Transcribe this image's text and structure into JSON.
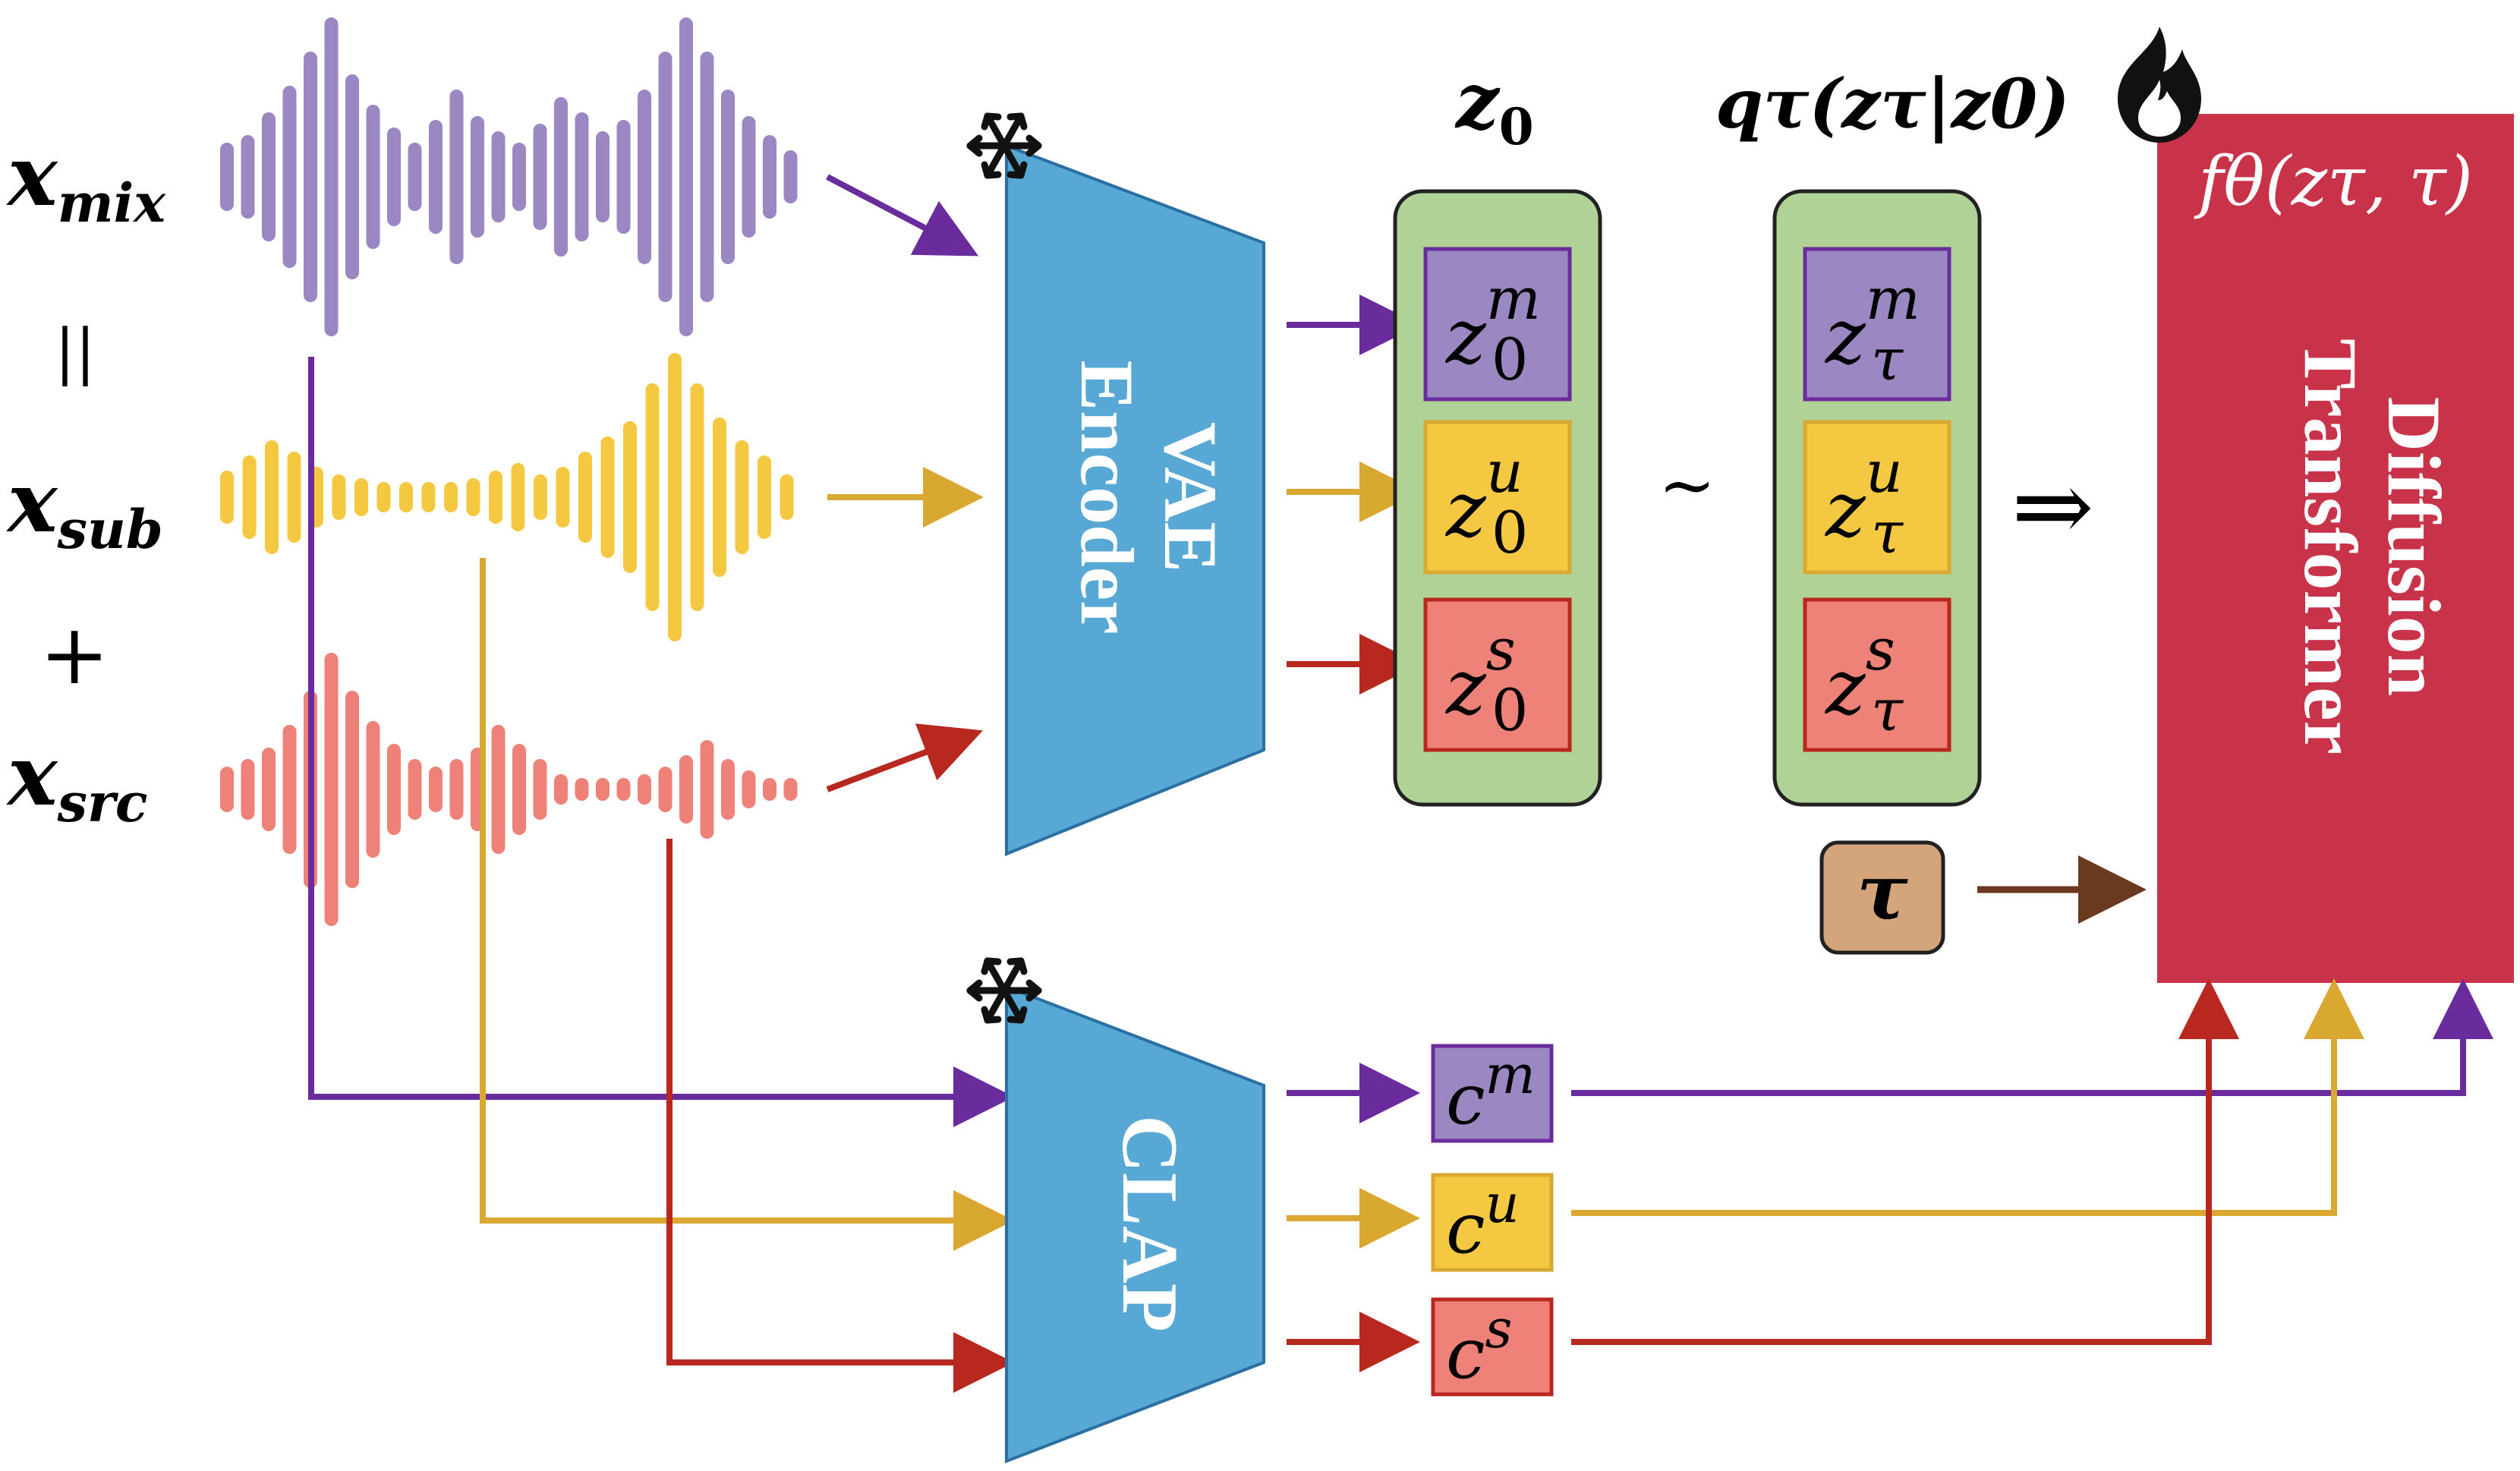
{
  "inputs": {
    "mix": {
      "main": "x",
      "sub": "mix"
    },
    "equals": "||",
    "sub_track": {
      "main": "x",
      "sub": "sub"
    },
    "plus": "+",
    "src": {
      "main": "x",
      "sub": "src"
    }
  },
  "encoders": {
    "vae_line1": "VAE",
    "vae_line2": "Encoder",
    "clap": "CLAP",
    "frozen_icon": "snowflake-icon"
  },
  "latents": {
    "z0_title_main": "z",
    "z0_title_sub": "0",
    "q_title": "qτ(zτ|z0)",
    "tilde": "~",
    "implies": "⇒",
    "z0_items": [
      {
        "base": "z",
        "sup": "m",
        "sub": "0"
      },
      {
        "base": "z",
        "sup": "u",
        "sub": "0"
      },
      {
        "base": "z",
        "sup": "s",
        "sub": "0"
      }
    ],
    "zt_items": [
      {
        "base": "z",
        "sup": "m",
        "sub": "τ"
      },
      {
        "base": "z",
        "sup": "u",
        "sub": "τ"
      },
      {
        "base": "z",
        "sup": "s",
        "sub": "τ"
      }
    ],
    "tau": "τ"
  },
  "conditions": [
    {
      "base": "c",
      "sup": "m"
    },
    {
      "base": "c",
      "sup": "u"
    },
    {
      "base": "c",
      "sup": "s"
    }
  ],
  "transformer": {
    "title": "fθ(zτ, τ)",
    "line1": "Diffusion",
    "line2": "Transformer",
    "trainable_icon": "fire-icon"
  },
  "colors": {
    "mix": "#9b87c1",
    "mix_arrow": "#6a2c9c",
    "sub": "#f5c842",
    "sub_arrow": "#d9a830",
    "src": "#ef8278",
    "src_arrow": "#b8281e",
    "encoder": "#57a8d4",
    "latent_group": "#b1d296",
    "transformer": "#c8334a",
    "tau_box": "#d4a57a",
    "tau_arrow": "#6b3a1e"
  }
}
